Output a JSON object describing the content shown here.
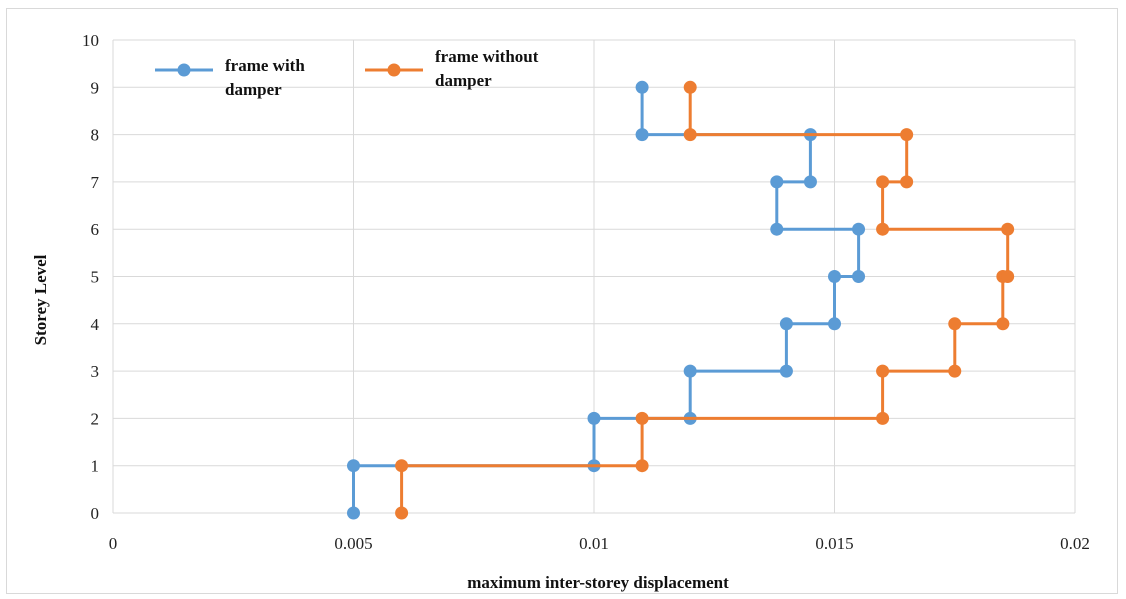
{
  "chart_data": {
    "type": "line",
    "step": "vertical-then-horizontal",
    "title": "",
    "xlabel": "maximum inter-storey displacement",
    "ylabel": "Storey Level",
    "xlim": [
      0,
      0.02
    ],
    "ylim": [
      0,
      10
    ],
    "x_ticks": [
      "0",
      "0.005",
      "0.01",
      "0.015",
      "0.02"
    ],
    "y_ticks": [
      "0",
      "1",
      "2",
      "3",
      "4",
      "5",
      "6",
      "7",
      "8",
      "9",
      "10"
    ],
    "grid": true,
    "legend_position": "top-left",
    "series": [
      {
        "name": "frame with damper",
        "legend_lines": [
          "frame with",
          "damper"
        ],
        "color": "#5B9BD5",
        "points": [
          {
            "x": 0.005,
            "y": 0
          },
          {
            "x": 0.005,
            "y": 1
          },
          {
            "x": 0.01,
            "y": 1
          },
          {
            "x": 0.01,
            "y": 2
          },
          {
            "x": 0.012,
            "y": 2
          },
          {
            "x": 0.012,
            "y": 3
          },
          {
            "x": 0.014,
            "y": 3
          },
          {
            "x": 0.014,
            "y": 4
          },
          {
            "x": 0.015,
            "y": 4
          },
          {
            "x": 0.015,
            "y": 5
          },
          {
            "x": 0.0155,
            "y": 5
          },
          {
            "x": 0.0155,
            "y": 6
          },
          {
            "x": 0.0138,
            "y": 6
          },
          {
            "x": 0.0138,
            "y": 7
          },
          {
            "x": 0.0145,
            "y": 7
          },
          {
            "x": 0.0145,
            "y": 8
          },
          {
            "x": 0.011,
            "y": 8
          },
          {
            "x": 0.011,
            "y": 9
          }
        ]
      },
      {
        "name": "frame without damper",
        "legend_lines": [
          "frame without",
          "damper"
        ],
        "color": "#ED7D31",
        "points": [
          {
            "x": 0.006,
            "y": 0
          },
          {
            "x": 0.006,
            "y": 1
          },
          {
            "x": 0.011,
            "y": 1
          },
          {
            "x": 0.011,
            "y": 2
          },
          {
            "x": 0.016,
            "y": 2
          },
          {
            "x": 0.016,
            "y": 3
          },
          {
            "x": 0.0175,
            "y": 3
          },
          {
            "x": 0.0175,
            "y": 4
          },
          {
            "x": 0.0185,
            "y": 4
          },
          {
            "x": 0.0185,
            "y": 5
          },
          {
            "x": 0.0186,
            "y": 5
          },
          {
            "x": 0.0186,
            "y": 6
          },
          {
            "x": 0.016,
            "y": 6
          },
          {
            "x": 0.016,
            "y": 7
          },
          {
            "x": 0.0165,
            "y": 7
          },
          {
            "x": 0.0165,
            "y": 8
          },
          {
            "x": 0.012,
            "y": 8
          },
          {
            "x": 0.012,
            "y": 9
          }
        ]
      }
    ]
  }
}
